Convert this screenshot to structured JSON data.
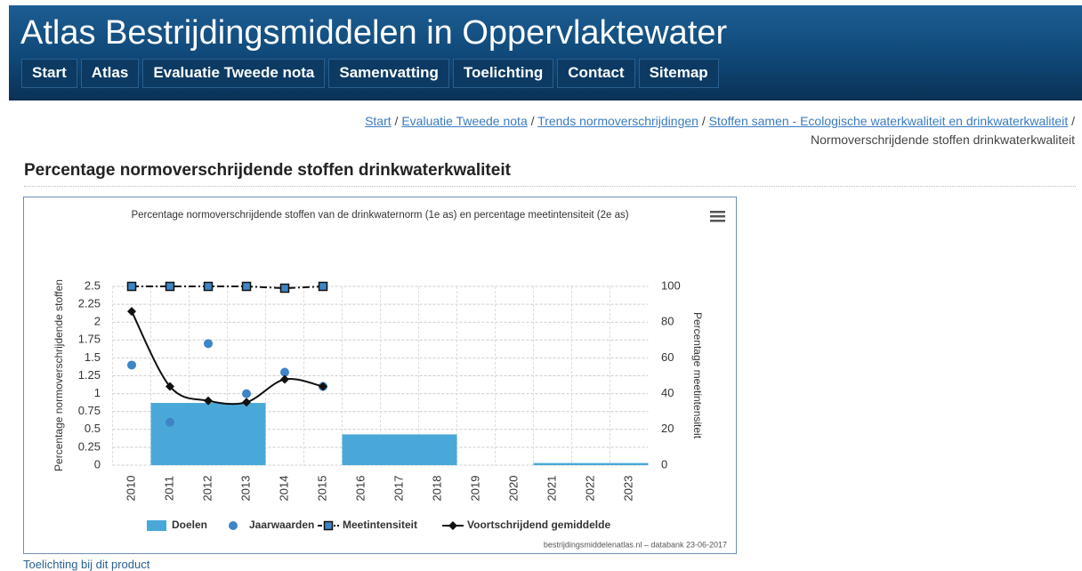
{
  "header": {
    "title": "Atlas Bestrijdingsmiddelen in Oppervlaktewater",
    "nav": [
      "Start",
      "Atlas",
      "Evaluatie Tweede nota",
      "Samenvatting",
      "Toelichting",
      "Contact",
      "Sitemap"
    ]
  },
  "breadcrumb": {
    "links": [
      "Start",
      "Evaluatie Tweede nota",
      "Trends normoverschrijdingen",
      "Stoffen samen - Ecologische waterkwaliteit en drinkwaterkwaliteit"
    ],
    "current": "Normoverschrijdende stoffen drinkwaterkwaliteit"
  },
  "heading": "Percentage normoverschrijdende stoffen drinkwaterkwaliteit",
  "chart_data": {
    "type": "combo",
    "title": "Percentage normoverschrijdende stoffen van de drinkwaternorm (1e as) en percentage meetintensiteit (2e as)",
    "y_label": "Percentage normoverschrijdende stoffen",
    "y2_label": "Percentage meetintensiteit",
    "categories": [
      "2010",
      "2011",
      "2012",
      "2013",
      "2014",
      "2015",
      "2016",
      "2017",
      "2018",
      "2019",
      "2020",
      "2021",
      "2022",
      "2023"
    ],
    "ylim": [
      0,
      2.5
    ],
    "yticks": [
      0,
      0.25,
      0.5,
      0.75,
      1,
      1.25,
      1.5,
      1.75,
      2,
      2.25,
      2.5
    ],
    "y2lim": [
      0,
      100
    ],
    "y2ticks": [
      0,
      20,
      40,
      60,
      80,
      100
    ],
    "grid": true,
    "series": [
      {
        "name": "Doelen",
        "type": "bar",
        "color": "#4aa8d8",
        "values": [
          null,
          0.87,
          0.87,
          0.87,
          null,
          null,
          0.43,
          0.43,
          0.43,
          null,
          null,
          0.03,
          0.03,
          0.03
        ]
      },
      {
        "name": "Jaarwaarden",
        "type": "scatter",
        "color": "#3d85c6",
        "values": [
          1.4,
          0.6,
          1.7,
          1.0,
          1.3,
          1.1,
          null,
          null,
          null,
          null,
          null,
          null,
          null,
          null
        ]
      },
      {
        "name": "Meetintensiteit",
        "type": "line",
        "axis": "y2",
        "color": "#111111",
        "marker": "square",
        "marker_color": "#3d85c6",
        "line_style": "dashdot",
        "values": [
          100,
          100,
          100,
          100,
          99,
          100,
          null,
          null,
          null,
          null,
          null,
          null,
          null,
          null
        ]
      },
      {
        "name": "Voortschrijdend gemiddelde",
        "type": "line",
        "color": "#111111",
        "marker": "diamond",
        "smooth": true,
        "values": [
          2.15,
          1.1,
          0.9,
          0.88,
          1.2,
          1.1,
          null,
          null,
          null,
          null,
          null,
          null,
          null,
          null
        ]
      }
    ],
    "credit": "bestrijdingsmiddelenatlas.nl – databank 23-06-2017"
  },
  "footer_link": "Toelichting bij dit product"
}
